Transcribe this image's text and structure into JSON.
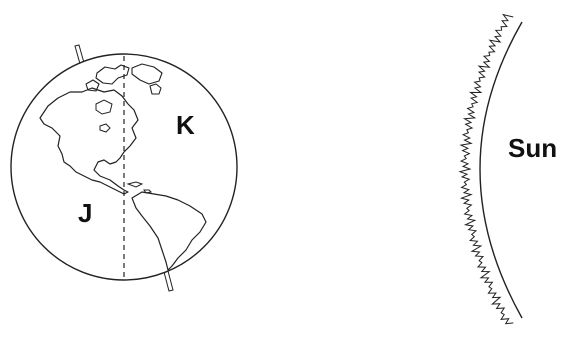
{
  "labels": {
    "point_k": "K",
    "point_j": "J",
    "sun": "Sun"
  }
}
